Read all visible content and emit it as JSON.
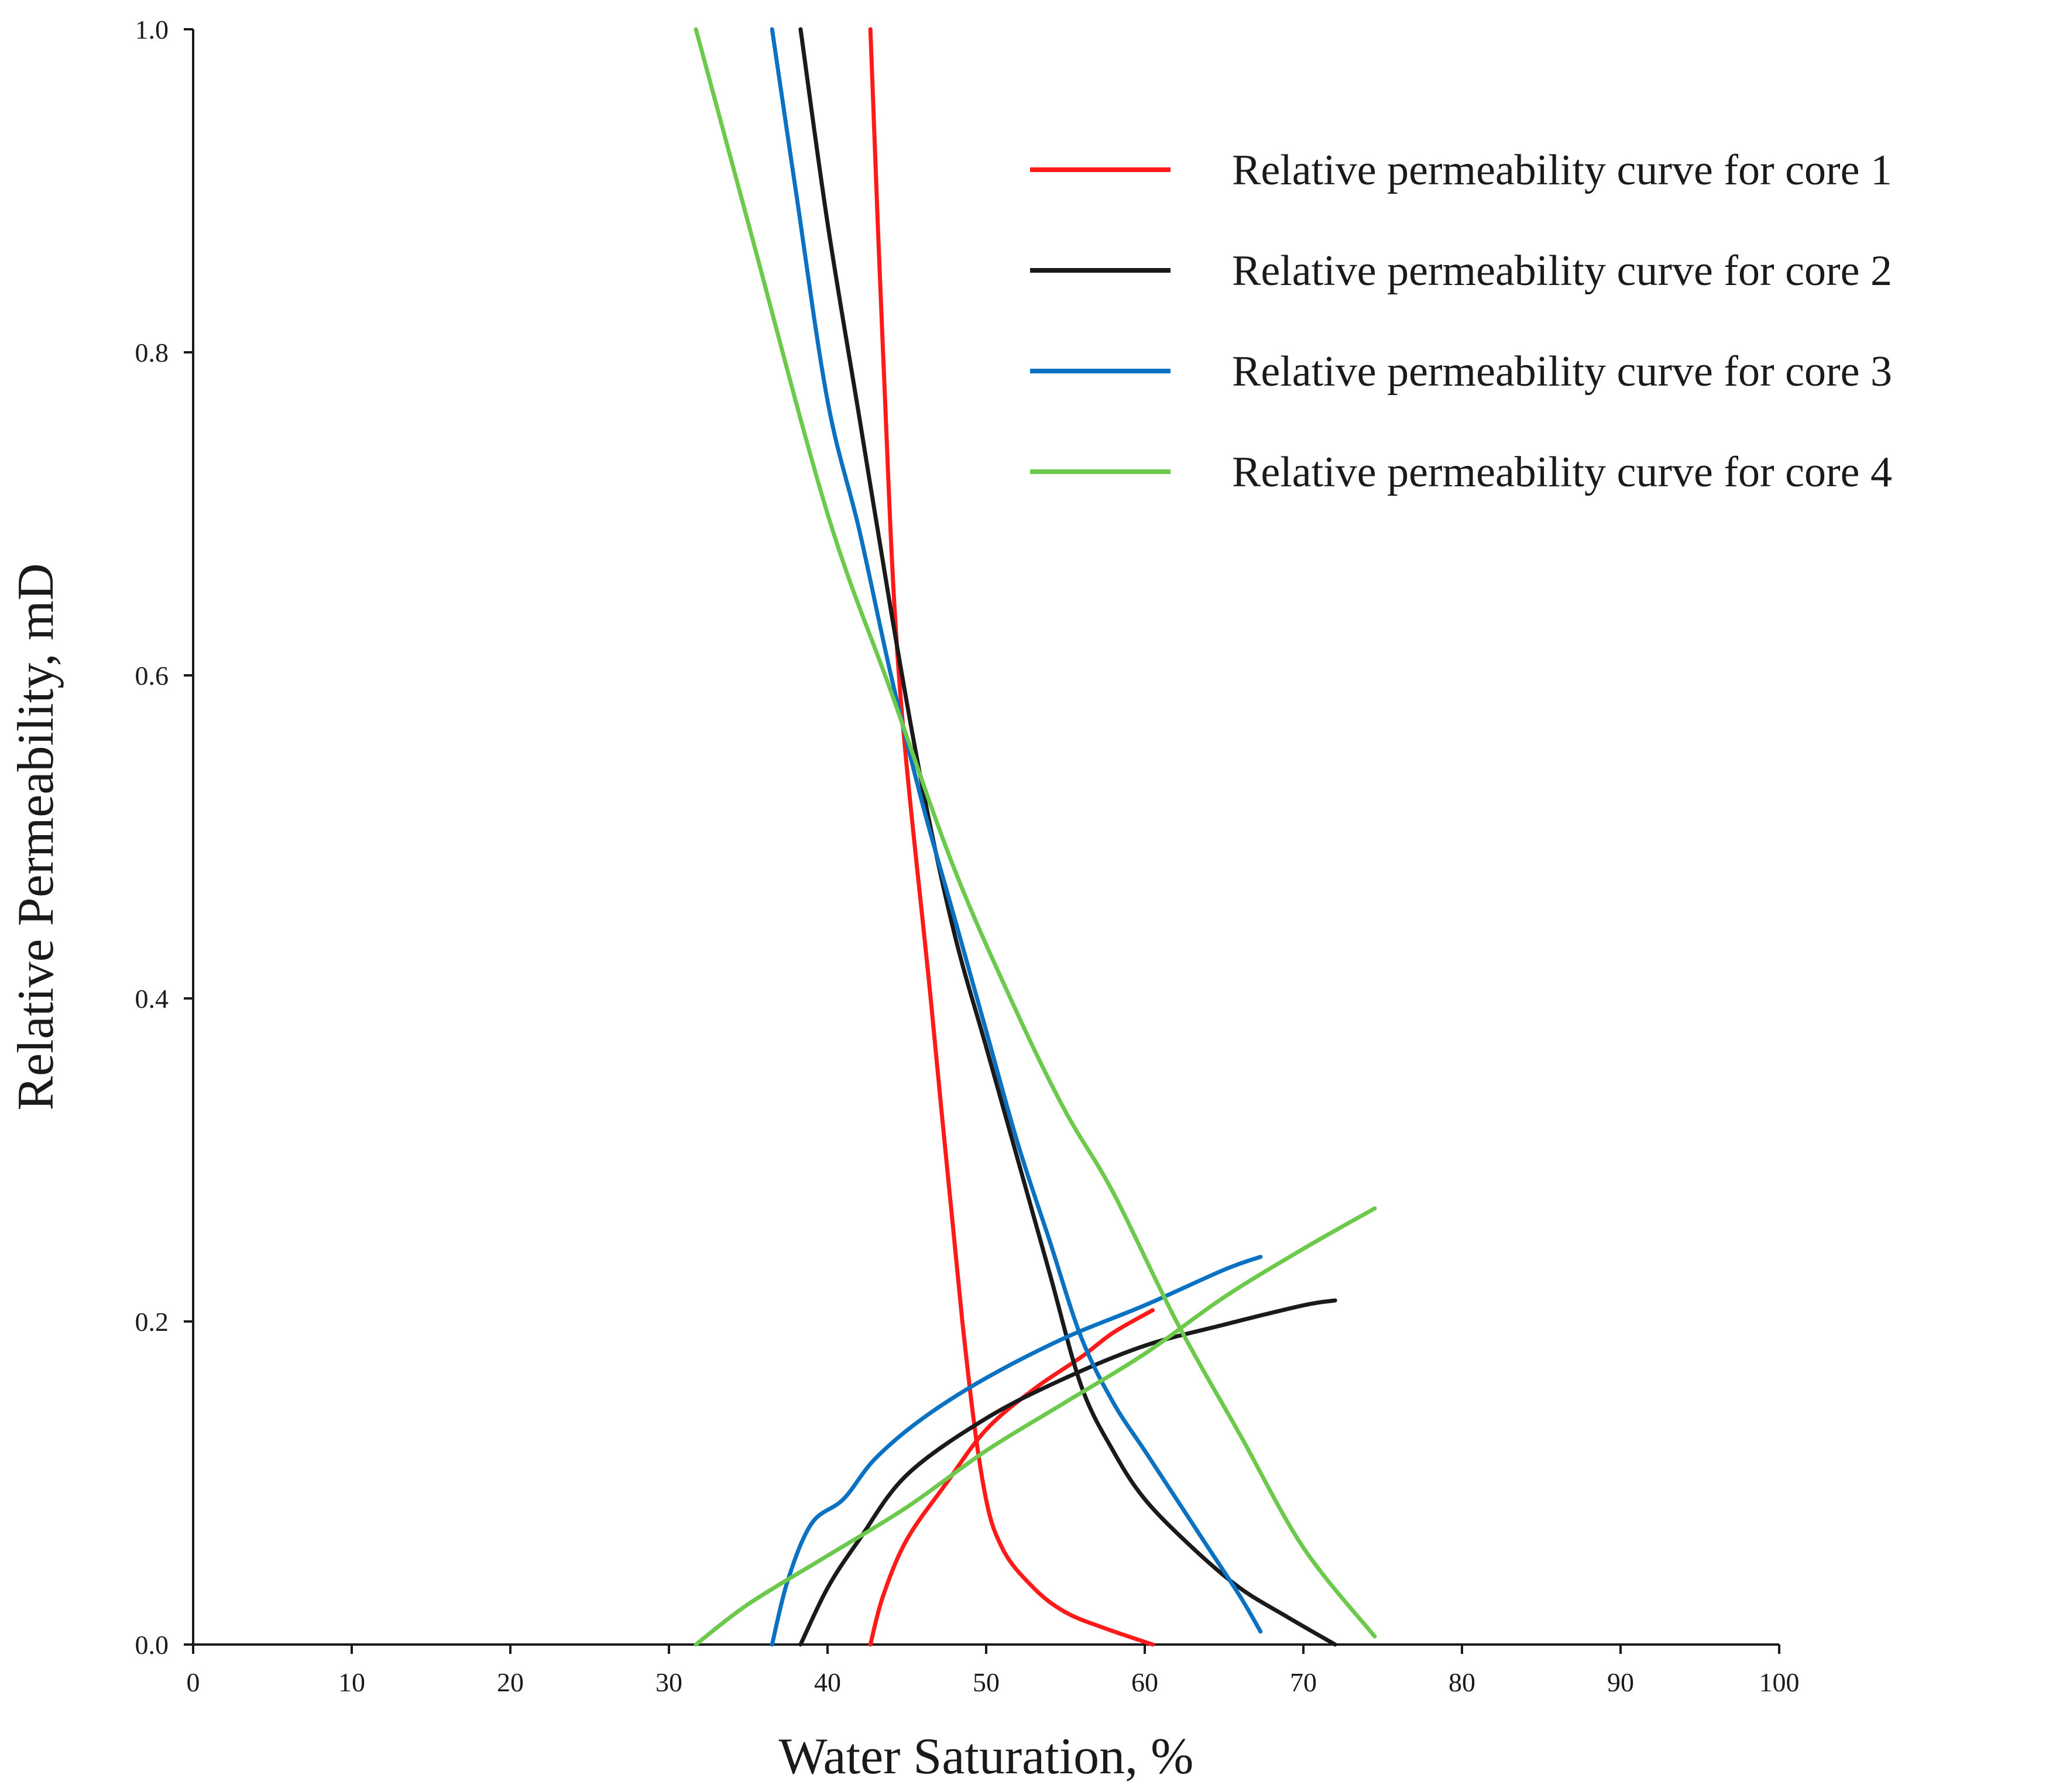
{
  "chart_data": {
    "type": "line",
    "title": "",
    "xlabel": "Water Saturation, %",
    "ylabel": "Relative Permeability, mD",
    "xlim": [
      0,
      100
    ],
    "ylim": [
      0,
      1.0
    ],
    "x_ticks": [
      "0",
      "10",
      "20",
      "30",
      "40",
      "50",
      "60",
      "70",
      "80",
      "90",
      "100"
    ],
    "y_ticks": [
      "0.0",
      "0.2",
      "0.4",
      "0.6",
      "0.8",
      "1.0"
    ],
    "grid": false,
    "legend_position": "top-right",
    "legend": [
      "Relative permeability curve for core 1",
      "Relative permeability curve for core 2",
      "Relative permeability curve for core 3",
      "Relative permeability curve for core 4"
    ],
    "series": [
      {
        "name": "Relative permeability curve for core 1",
        "color": "#ff1a1a",
        "kro": [
          [
            42.7,
            1.0
          ],
          [
            43.5,
            0.8
          ],
          [
            44.5,
            0.6
          ],
          [
            46.5,
            0.4
          ],
          [
            48.5,
            0.2
          ],
          [
            49.8,
            0.1
          ],
          [
            51,
            0.06
          ],
          [
            53,
            0.035
          ],
          [
            55,
            0.02
          ],
          [
            57.5,
            0.01
          ],
          [
            60.5,
            0.0
          ]
        ],
        "krw": [
          [
            42.7,
            0.0
          ],
          [
            43.5,
            0.03
          ],
          [
            45,
            0.065
          ],
          [
            47.5,
            0.1
          ],
          [
            50,
            0.133
          ],
          [
            53,
            0.158
          ],
          [
            56,
            0.178
          ],
          [
            58,
            0.193
          ],
          [
            60.5,
            0.207
          ]
        ]
      },
      {
        "name": "Relative permeability curve for core 2",
        "color": "#1a1a1a",
        "kro": [
          [
            38.3,
            1.0
          ],
          [
            40,
            0.88
          ],
          [
            42,
            0.76
          ],
          [
            44,
            0.64
          ],
          [
            46,
            0.53
          ],
          [
            48,
            0.44
          ],
          [
            50,
            0.37
          ],
          [
            52,
            0.3
          ],
          [
            54,
            0.23
          ],
          [
            56,
            0.16
          ],
          [
            58,
            0.12
          ],
          [
            60,
            0.09
          ],
          [
            63,
            0.06
          ],
          [
            66,
            0.035
          ],
          [
            69,
            0.017
          ],
          [
            72,
            0.0
          ]
        ],
        "krw": [
          [
            38.3,
            0.0
          ],
          [
            40,
            0.035
          ],
          [
            42,
            0.065
          ],
          [
            45,
            0.105
          ],
          [
            50,
            0.14
          ],
          [
            55,
            0.165
          ],
          [
            60,
            0.185
          ],
          [
            65,
            0.198
          ],
          [
            70,
            0.21
          ],
          [
            72,
            0.213
          ]
        ]
      },
      {
        "name": "Relative permeability curve for core 3",
        "color": "#0b72c3",
        "kro": [
          [
            36.5,
            1.0
          ],
          [
            38,
            0.9
          ],
          [
            40,
            0.77
          ],
          [
            42,
            0.69
          ],
          [
            44,
            0.6
          ],
          [
            46,
            0.52
          ],
          [
            48,
            0.45
          ],
          [
            50,
            0.38
          ],
          [
            52,
            0.31
          ],
          [
            54,
            0.25
          ],
          [
            56,
            0.19
          ],
          [
            58,
            0.15
          ],
          [
            60,
            0.12
          ],
          [
            62,
            0.09
          ],
          [
            64,
            0.06
          ],
          [
            66,
            0.03
          ],
          [
            67.3,
            0.008
          ]
        ],
        "krw": [
          [
            36.5,
            0.0
          ],
          [
            37.5,
            0.04
          ],
          [
            39,
            0.075
          ],
          [
            41,
            0.09
          ],
          [
            43,
            0.115
          ],
          [
            46,
            0.14
          ],
          [
            50,
            0.165
          ],
          [
            55,
            0.19
          ],
          [
            60,
            0.21
          ],
          [
            65,
            0.232
          ],
          [
            67.3,
            0.24
          ]
        ]
      },
      {
        "name": "Relative permeability curve for core 4",
        "color": "#6cc94c",
        "kro": [
          [
            31.7,
            1.0
          ],
          [
            35,
            0.88
          ],
          [
            40,
            0.7
          ],
          [
            44,
            0.59
          ],
          [
            48,
            0.48
          ],
          [
            52,
            0.39
          ],
          [
            55,
            0.33
          ],
          [
            58,
            0.28
          ],
          [
            62,
            0.2
          ],
          [
            66,
            0.13
          ],
          [
            70,
            0.06
          ],
          [
            74.5,
            0.005
          ]
        ],
        "krw": [
          [
            31.7,
            0.0
          ],
          [
            35,
            0.025
          ],
          [
            40,
            0.055
          ],
          [
            45,
            0.085
          ],
          [
            50,
            0.12
          ],
          [
            55,
            0.15
          ],
          [
            60,
            0.18
          ],
          [
            65,
            0.215
          ],
          [
            70,
            0.245
          ],
          [
            74.5,
            0.27
          ]
        ]
      }
    ]
  }
}
